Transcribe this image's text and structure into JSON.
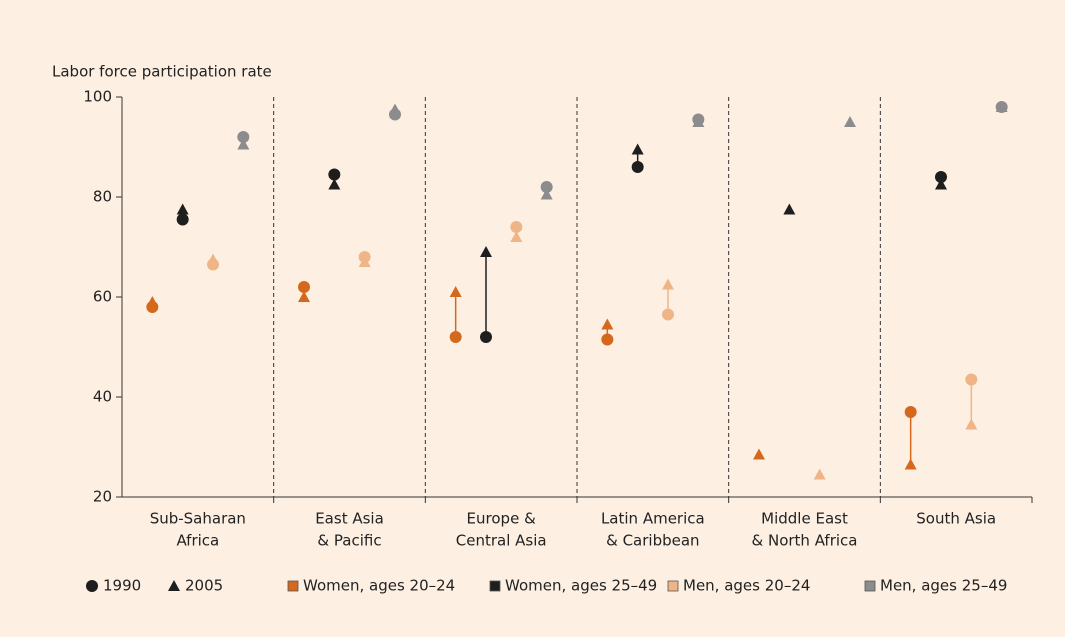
{
  "chart_data": {
    "type": "dot-change",
    "y_label": "Labor force participation rate",
    "categories": [
      [
        "Sub-Saharan",
        "Africa"
      ],
      [
        "East Asia",
        "& Pacific"
      ],
      [
        "Europe &",
        "Central Asia"
      ],
      [
        "Latin America",
        "& Caribbean"
      ],
      [
        "Middle East",
        "& North Africa"
      ],
      [
        "South Asia"
      ]
    ],
    "years": [
      "1990",
      "2005"
    ],
    "markers": [
      "circle",
      "triangle"
    ],
    "series": [
      {
        "name": "Women, ages 20–24",
        "color": "#d4691e",
        "values": [
          [
            58,
            59
          ],
          [
            62,
            60
          ],
          [
            52,
            61
          ],
          [
            51.5,
            54.5
          ],
          [
            null,
            28.5
          ],
          [
            37,
            26.5
          ]
        ]
      },
      {
        "name": "Women, ages 25–49",
        "color": "#1e1e1e",
        "values": [
          [
            75.5,
            77.5
          ],
          [
            84.5,
            82.5
          ],
          [
            52,
            69
          ],
          [
            86,
            89.5
          ],
          [
            null,
            77.5
          ],
          [
            84,
            82.5
          ]
        ]
      },
      {
        "name": "Men, ages 20–24",
        "color": "#f0b587",
        "values": [
          [
            66.5,
            67.5
          ],
          [
            68,
            67
          ],
          [
            74,
            72
          ],
          [
            56.5,
            62.5
          ],
          [
            null,
            24.5
          ],
          [
            43.5,
            34.5
          ]
        ]
      },
      {
        "name": "Men, ages 25–49",
        "color": "#8c8c8e",
        "values": [
          [
            92,
            90.5
          ],
          [
            96.5,
            97.5
          ],
          [
            82,
            80.5
          ],
          [
            95.5,
            95
          ],
          [
            null,
            95
          ],
          [
            98,
            98
          ]
        ]
      }
    ],
    "ylim": [
      20,
      100
    ],
    "yticks": [
      20,
      40,
      60,
      80,
      100
    ],
    "separators": true
  }
}
